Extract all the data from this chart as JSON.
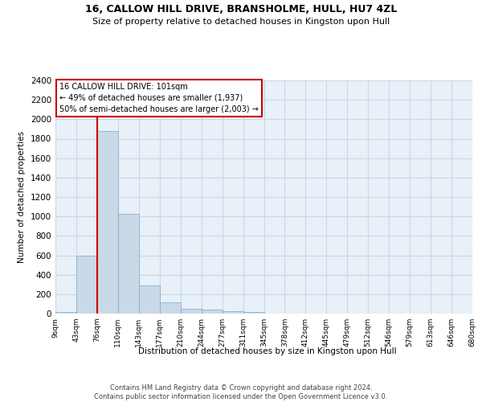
{
  "title_line1": "16, CALLOW HILL DRIVE, BRANSHOLME, HULL, HU7 4ZL",
  "title_line2": "Size of property relative to detached houses in Kingston upon Hull",
  "xlabel": "Distribution of detached houses by size in Kingston upon Hull",
  "ylabel": "Number of detached properties",
  "footnote": "Contains HM Land Registry data © Crown copyright and database right 2024.\nContains public sector information licensed under the Open Government Licence v3.0.",
  "bin_labels": [
    "9sqm",
    "43sqm",
    "76sqm",
    "110sqm",
    "143sqm",
    "177sqm",
    "210sqm",
    "244sqm",
    "277sqm",
    "311sqm",
    "345sqm",
    "378sqm",
    "412sqm",
    "445sqm",
    "479sqm",
    "512sqm",
    "546sqm",
    "579sqm",
    "613sqm",
    "646sqm",
    "680sqm"
  ],
  "bar_values": [
    20,
    600,
    1880,
    1030,
    290,
    115,
    50,
    40,
    28,
    20,
    0,
    0,
    0,
    0,
    0,
    0,
    0,
    0,
    0,
    0
  ],
  "bar_color": "#c9d9e8",
  "bar_edge_color": "#7aaac8",
  "grid_color": "#c8d8e8",
  "background_color": "#e8f0f8",
  "vline_color": "#cc0000",
  "annotation_text": "16 CALLOW HILL DRIVE: 101sqm\n← 49% of detached houses are smaller (1,937)\n50% of semi-detached houses are larger (2,003) →",
  "annotation_box_edgecolor": "#cc0000",
  "ylim": [
    0,
    2400
  ],
  "yticks": [
    0,
    200,
    400,
    600,
    800,
    1000,
    1200,
    1400,
    1600,
    1800,
    2000,
    2200,
    2400
  ]
}
